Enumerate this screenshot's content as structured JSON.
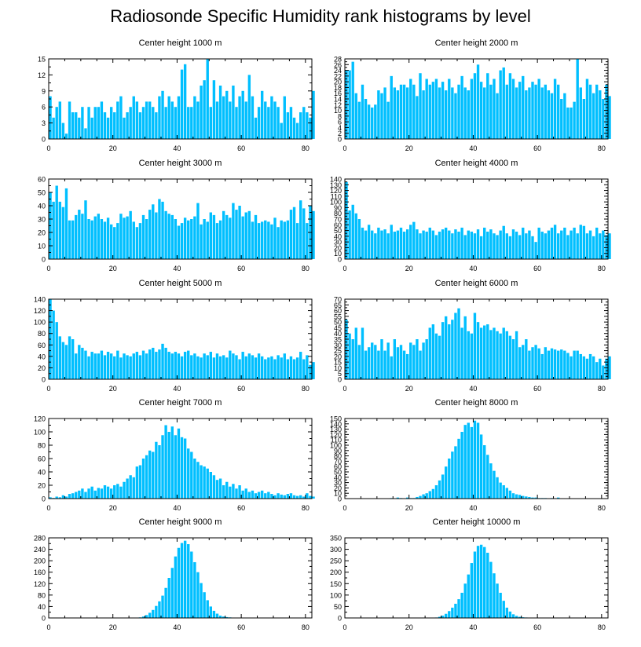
{
  "figure": {
    "title": "Radiosonde Specific Humidity rank histograms by level",
    "bar_color": "#00BFFF",
    "axis_color": "#000000"
  },
  "chart_data": [
    {
      "type": "bar",
      "title": "Center height 1000 m",
      "xlim": [
        0,
        82
      ],
      "ylim": [
        0,
        15
      ],
      "xticks": [
        0,
        20,
        40,
        60,
        80
      ],
      "yticks": [
        0,
        3,
        6,
        9,
        12,
        15
      ],
      "values": [
        8,
        4,
        6,
        7,
        3,
        1,
        7,
        5,
        5,
        4,
        6,
        2,
        6,
        4,
        6,
        6,
        7,
        5,
        4,
        6,
        5,
        7,
        8,
        4,
        5,
        6,
        8,
        7,
        5,
        6,
        7,
        7,
        6,
        5,
        8,
        9,
        6,
        8,
        7,
        6,
        8,
        13,
        14,
        6,
        6,
        8,
        7,
        10,
        11,
        15,
        6,
        11,
        7,
        10,
        8,
        9,
        7,
        10,
        6,
        8,
        9,
        7,
        12,
        8,
        4,
        6,
        9,
        7,
        6,
        8,
        7,
        6,
        3,
        8,
        5,
        6,
        4,
        3,
        5,
        6,
        5,
        4,
        9
      ],
      "xlabel": "",
      "ylabel": ""
    },
    {
      "type": "bar",
      "title": "Center height 2000 m",
      "xlim": [
        0,
        82
      ],
      "ylim": [
        0,
        28
      ],
      "xticks": [
        0,
        20,
        40,
        60,
        80
      ],
      "yticks": [
        0,
        2,
        4,
        6,
        8,
        10,
        12,
        14,
        16,
        18,
        20,
        22,
        24,
        26,
        28
      ],
      "values": [
        24,
        24,
        27,
        16,
        13,
        19,
        14,
        12,
        11,
        12,
        17,
        16,
        18,
        13,
        22,
        18,
        17,
        19,
        19,
        18,
        21,
        19,
        15,
        23,
        17,
        21,
        19,
        20,
        21,
        18,
        20,
        17,
        21,
        18,
        16,
        19,
        22,
        18,
        17,
        21,
        23,
        26,
        20,
        18,
        23,
        19,
        21,
        16,
        24,
        25,
        19,
        23,
        21,
        18,
        20,
        22,
        17,
        18,
        20,
        19,
        21,
        18,
        19,
        17,
        16,
        21,
        19,
        14,
        16,
        11,
        11,
        13,
        28,
        18,
        14,
        21,
        19,
        16,
        19,
        17,
        14,
        19,
        15
      ],
      "xlabel": "",
      "ylabel": ""
    },
    {
      "type": "bar",
      "title": "Center height 3000 m",
      "xlim": [
        0,
        82
      ],
      "ylim": [
        0,
        60
      ],
      "xticks": [
        0,
        20,
        40,
        60,
        80
      ],
      "yticks": [
        0,
        10,
        20,
        30,
        40,
        50,
        60
      ],
      "values": [
        50,
        43,
        55,
        43,
        39,
        53,
        29,
        29,
        33,
        37,
        34,
        44,
        30,
        29,
        32,
        34,
        30,
        28,
        31,
        26,
        24,
        27,
        34,
        31,
        32,
        36,
        28,
        24,
        27,
        33,
        30,
        37,
        41,
        35,
        45,
        43,
        36,
        34,
        33,
        30,
        25,
        27,
        31,
        29,
        30,
        32,
        42,
        26,
        30,
        28,
        35,
        33,
        27,
        29,
        36,
        33,
        31,
        42,
        37,
        40,
        32,
        35,
        36,
        28,
        33,
        27,
        28,
        29,
        28,
        26,
        31,
        24,
        29,
        28,
        29,
        37,
        39,
        27,
        44,
        38,
        27,
        40,
        36
      ],
      "xlabel": "",
      "ylabel": ""
    },
    {
      "type": "bar",
      "title": "Center height 4000 m",
      "xlim": [
        0,
        82
      ],
      "ylim": [
        0,
        140
      ],
      "xticks": [
        0,
        20,
        40,
        60,
        80
      ],
      "yticks": [
        0,
        10,
        20,
        30,
        40,
        50,
        60,
        70,
        80,
        90,
        100,
        110,
        120,
        130,
        140
      ],
      "values": [
        135,
        85,
        95,
        80,
        70,
        55,
        50,
        60,
        50,
        45,
        55,
        50,
        52,
        45,
        60,
        48,
        50,
        55,
        48,
        52,
        60,
        65,
        52,
        45,
        50,
        48,
        55,
        50,
        42,
        48,
        52,
        55,
        50,
        45,
        52,
        48,
        55,
        42,
        50,
        48,
        45,
        52,
        40,
        55,
        48,
        52,
        45,
        42,
        50,
        58,
        45,
        40,
        52,
        48,
        42,
        55,
        45,
        50,
        40,
        30,
        55,
        48,
        45,
        50,
        55,
        60,
        45,
        50,
        55,
        42,
        50,
        55,
        45,
        60,
        58,
        45,
        50,
        40,
        55,
        45,
        50,
        42,
        45
      ],
      "xlabel": "",
      "ylabel": ""
    },
    {
      "type": "bar",
      "title": "Center height 5000 m",
      "xlim": [
        0,
        82
      ],
      "ylim": [
        0,
        140
      ],
      "xticks": [
        0,
        20,
        40,
        60,
        80
      ],
      "yticks": [
        0,
        20,
        40,
        60,
        80,
        100,
        120,
        140
      ],
      "values": [
        140,
        120,
        100,
        75,
        65,
        60,
        75,
        70,
        45,
        60,
        55,
        50,
        40,
        48,
        45,
        45,
        50,
        42,
        48,
        45,
        40,
        50,
        38,
        45,
        42,
        40,
        45,
        48,
        42,
        50,
        45,
        52,
        55,
        48,
        52,
        62,
        55,
        48,
        45,
        48,
        45,
        40,
        48,
        50,
        42,
        45,
        40,
        38,
        45,
        42,
        48,
        38,
        45,
        40,
        42,
        38,
        50,
        45,
        42,
        35,
        48,
        40,
        45,
        42,
        38,
        45,
        40,
        35,
        38,
        40,
        35,
        42,
        38,
        45,
        35,
        40,
        35,
        38,
        48,
        35,
        42,
        25,
        30
      ],
      "xlabel": "",
      "ylabel": ""
    },
    {
      "type": "bar",
      "title": "Center height 6000 m",
      "xlim": [
        0,
        82
      ],
      "ylim": [
        0,
        70
      ],
      "xticks": [
        0,
        20,
        40,
        60,
        80
      ],
      "yticks": [
        0,
        5,
        10,
        15,
        20,
        25,
        30,
        35,
        40,
        45,
        50,
        55,
        60,
        65,
        70
      ],
      "values": [
        52,
        40,
        35,
        45,
        30,
        45,
        25,
        28,
        32,
        30,
        25,
        35,
        25,
        32,
        20,
        35,
        28,
        30,
        25,
        22,
        32,
        30,
        35,
        25,
        32,
        35,
        45,
        48,
        40,
        38,
        50,
        55,
        48,
        52,
        58,
        62,
        45,
        55,
        42,
        40,
        58,
        50,
        45,
        47,
        48,
        43,
        45,
        42,
        40,
        45,
        42,
        38,
        35,
        42,
        28,
        30,
        35,
        25,
        28,
        30,
        27,
        22,
        28,
        25,
        27,
        26,
        25,
        26,
        25,
        23,
        20,
        25,
        25,
        22,
        20,
        18,
        22,
        20,
        15,
        18,
        12,
        18,
        20
      ],
      "xlabel": "",
      "ylabel": ""
    },
    {
      "type": "bar",
      "title": "Center height 7000 m",
      "xlim": [
        0,
        82
      ],
      "ylim": [
        0,
        120
      ],
      "xticks": [
        0,
        20,
        40,
        60,
        80
      ],
      "yticks": [
        0,
        20,
        40,
        60,
        80,
        100,
        120
      ],
      "values": [
        2,
        1,
        3,
        2,
        5,
        3,
        7,
        8,
        10,
        12,
        15,
        10,
        15,
        18,
        12,
        16,
        15,
        20,
        18,
        15,
        20,
        22,
        18,
        25,
        30,
        35,
        32,
        48,
        50,
        60,
        65,
        72,
        70,
        85,
        80,
        95,
        110,
        100,
        108,
        95,
        105,
        92,
        90,
        75,
        70,
        60,
        55,
        50,
        48,
        45,
        40,
        35,
        28,
        30,
        20,
        25,
        18,
        22,
        15,
        20,
        12,
        15,
        10,
        12,
        8,
        10,
        12,
        8,
        10,
        7,
        5,
        8,
        6,
        5,
        7,
        8,
        5,
        4,
        5,
        3,
        8,
        4,
        3
      ],
      "xlabel": "",
      "ylabel": ""
    },
    {
      "type": "bar",
      "title": "Center height 8000 m",
      "xlim": [
        0,
        82
      ],
      "ylim": [
        0,
        150
      ],
      "xticks": [
        0,
        20,
        40,
        60,
        80
      ],
      "yticks": [
        0,
        10,
        20,
        30,
        40,
        50,
        60,
        70,
        80,
        90,
        100,
        110,
        120,
        130,
        140,
        150
      ],
      "values": [
        0,
        0,
        0,
        0,
        0,
        0,
        0,
        0,
        0,
        0,
        0,
        0,
        0,
        0,
        1,
        0,
        2,
        1,
        0,
        2,
        1,
        1,
        3,
        5,
        8,
        10,
        14,
        18,
        25,
        34,
        45,
        60,
        75,
        88,
        98,
        112,
        125,
        138,
        142,
        134,
        146,
        142,
        120,
        100,
        82,
        66,
        52,
        40,
        30,
        25,
        20,
        15,
        10,
        8,
        7,
        5,
        4,
        3,
        2,
        2,
        1,
        1,
        1,
        0,
        1,
        0,
        2,
        0,
        0,
        0,
        0,
        0,
        0,
        0,
        0,
        0,
        0,
        0,
        0,
        0,
        0,
        0,
        0
      ],
      "xlabel": "",
      "ylabel": ""
    },
    {
      "type": "bar",
      "title": "Center height 9000 m",
      "xlim": [
        0,
        82
      ],
      "ylim": [
        0,
        280
      ],
      "xticks": [
        0,
        20,
        40,
        60,
        80
      ],
      "yticks": [
        0,
        40,
        80,
        120,
        160,
        200,
        240,
        280
      ],
      "values": [
        0,
        0,
        0,
        0,
        0,
        0,
        0,
        0,
        0,
        0,
        0,
        0,
        0,
        0,
        0,
        0,
        0,
        0,
        0,
        0,
        0,
        0,
        0,
        0,
        0,
        0,
        0,
        1,
        2,
        5,
        10,
        18,
        28,
        42,
        58,
        78,
        105,
        140,
        175,
        215,
        245,
        262,
        270,
        258,
        232,
        195,
        160,
        122,
        90,
        62,
        40,
        25,
        15,
        8,
        5,
        3,
        2,
        1,
        1,
        0,
        0,
        0,
        0,
        0,
        0,
        0,
        0,
        0,
        0,
        0,
        0,
        0,
        0,
        0,
        0,
        0,
        0,
        0,
        0,
        0,
        0,
        0,
        0
      ],
      "xlabel": "",
      "ylabel": ""
    },
    {
      "type": "bar",
      "title": "Center height 10000 m",
      "xlim": [
        0,
        82
      ],
      "ylim": [
        0,
        350
      ],
      "xticks": [
        0,
        20,
        40,
        60,
        80
      ],
      "yticks": [
        0,
        50,
        100,
        150,
        200,
        250,
        300,
        350
      ],
      "values": [
        0,
        0,
        0,
        0,
        0,
        0,
        0,
        0,
        0,
        0,
        0,
        0,
        0,
        0,
        0,
        0,
        0,
        0,
        0,
        0,
        0,
        0,
        0,
        0,
        0,
        0,
        0,
        1,
        2,
        5,
        10,
        18,
        30,
        45,
        62,
        82,
        110,
        150,
        190,
        240,
        290,
        315,
        320,
        310,
        285,
        245,
        195,
        150,
        110,
        75,
        45,
        28,
        16,
        9,
        5,
        3,
        2,
        1,
        1,
        0,
        0,
        0,
        0,
        0,
        0,
        0,
        0,
        0,
        0,
        0,
        0,
        0,
        0,
        0,
        0,
        0,
        0,
        0,
        0,
        0,
        0,
        0,
        0
      ],
      "xlabel": "",
      "ylabel": ""
    }
  ]
}
